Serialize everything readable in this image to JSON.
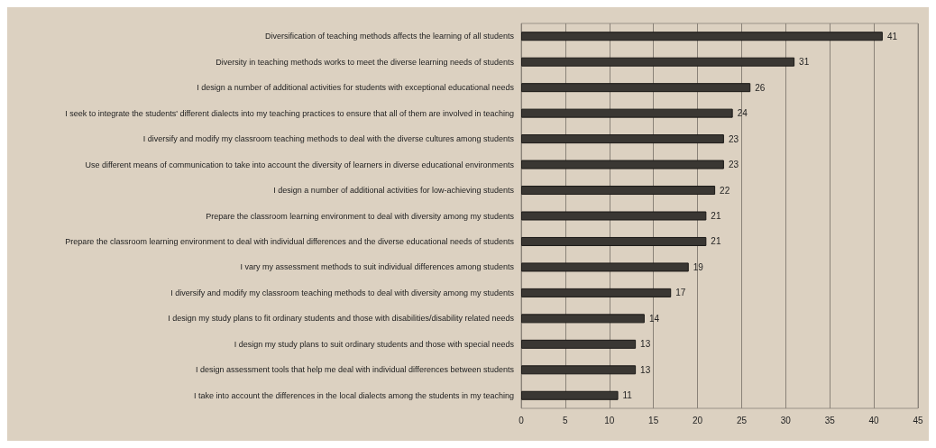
{
  "chart_data": {
    "type": "bar",
    "orientation": "horizontal",
    "categories": [
      "Diversification of teaching methods affects the learning of all students",
      "Diversity in teaching methods works to meet the diverse learning needs of students",
      "I design a number of additional activities for students with exceptional educational needs",
      "I seek to integrate the students' different dialects into my teaching practices to ensure that all of them are involved in teaching",
      "I diversify and modify my classroom teaching methods to deal with the diverse cultures among students",
      "Use different means of communication to take into account the diversity of learners in diverse educational environments",
      "I design a number of additional activities for low-achieving students",
      "Prepare the classroom learning environment to deal with diversity among my students",
      "Prepare the classroom learning environment to deal with individual differences and the diverse educational needs of students",
      "I vary my assessment methods to suit individual differences among students",
      "I diversify and modify my classroom teaching methods to deal with diversity among my students",
      "I design my study plans to fit ordinary students and those with disabilities/disability related needs",
      "I design my study plans to suit ordinary students and those with special needs",
      "I design assessment tools that help me deal with individual differences between students",
      "I take into account the differences in the local dialects among the students in my teaching"
    ],
    "values": [
      41,
      31,
      26,
      24,
      23,
      23,
      22,
      21,
      21,
      19,
      17,
      14,
      13,
      13,
      11
    ],
    "color": "#3a3733",
    "xlim": [
      0,
      45
    ],
    "xticks": [
      0,
      5,
      10,
      15,
      20,
      25,
      30,
      35,
      40,
      45
    ],
    "grid": "x",
    "data_labels": true
  }
}
